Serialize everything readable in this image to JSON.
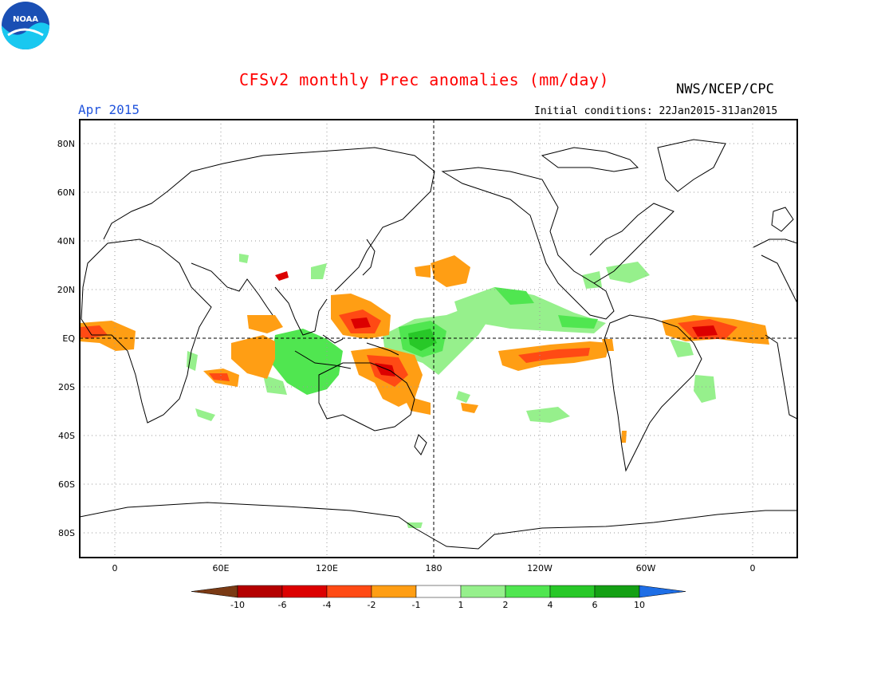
{
  "header": {
    "title": "CFSv2 monthly Prec anomalies (mm/day)",
    "valid_month": "Apr 2015",
    "agency": "NWS/NCEP/CPC",
    "initial_conditions": "Initial conditions: 22Jan2015-31Jan2015",
    "logo_text": "NOAA"
  },
  "colors": {
    "title": "#ff0000",
    "valid_month": "#2255dd",
    "map_border": "#000000",
    "coast": "#000000",
    "gridlines": "#999999"
  },
  "map": {
    "lat_labels": [
      "80N",
      "60N",
      "40N",
      "20N",
      "EQ",
      "20S",
      "40S",
      "60S",
      "80S"
    ],
    "lon_labels": [
      "0",
      "60E",
      "120E",
      "180",
      "120W",
      "60W",
      "0"
    ]
  },
  "colorbar": {
    "colors": [
      "#7a3a14",
      "#b40000",
      "#dc0000",
      "#ff4a14",
      "#ff9e14",
      "#ffffff",
      "#96f08c",
      "#50e650",
      "#28c828",
      "#14a014",
      "#1e6ee6"
    ],
    "tick_labels": [
      "-10",
      "-6",
      "-4",
      "-2",
      "-1",
      "1",
      "2",
      "4",
      "6",
      "10"
    ]
  }
}
